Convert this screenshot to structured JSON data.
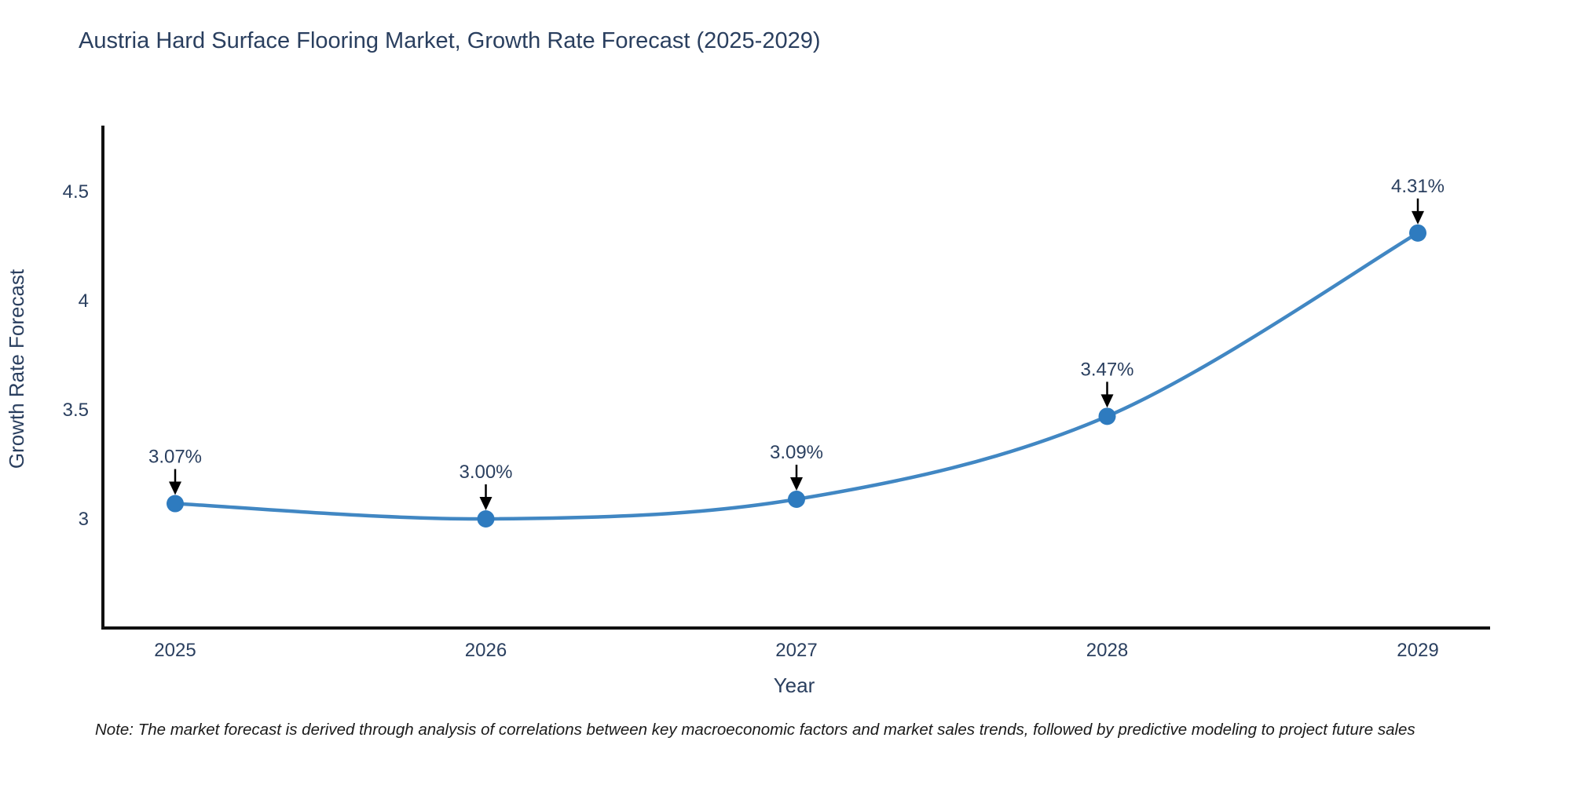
{
  "page": {
    "note": "Note: The market forecast is derived through analysis of correlations between key macroeconomic factors and market sales trends, followed by predictive modeling to project future sales"
  },
  "chart_data": {
    "type": "line",
    "title": "Austria Hard Surface Flooring Market, Growth Rate Forecast (2025-2029)",
    "xlabel": "Year",
    "ylabel": "Growth Rate Forecast",
    "categories": [
      "2025",
      "2026",
      "2027",
      "2028",
      "2029"
    ],
    "values": [
      3.07,
      3.0,
      3.09,
      3.47,
      4.31
    ],
    "point_labels": [
      "3.07%",
      "3.00%",
      "3.09%",
      "3.47%",
      "4.31%"
    ],
    "series_name": "Growth Rate Forecast",
    "ytick_values": [
      3,
      3.5,
      4,
      4.5
    ],
    "ytick_labels": [
      "3",
      "3.5",
      "4",
      "4.5"
    ],
    "ylim": [
      2.5,
      4.81
    ],
    "grid": false,
    "legend": "none",
    "line_shape": "spline",
    "annotations_arrow": "down-arrow-to-point",
    "colors": {
      "line": "#4187c3",
      "marker": "#2e7bbf",
      "arrow": "#000000",
      "text": "#2a3f5f",
      "axis": "#111111",
      "background": "#ffffff"
    }
  }
}
